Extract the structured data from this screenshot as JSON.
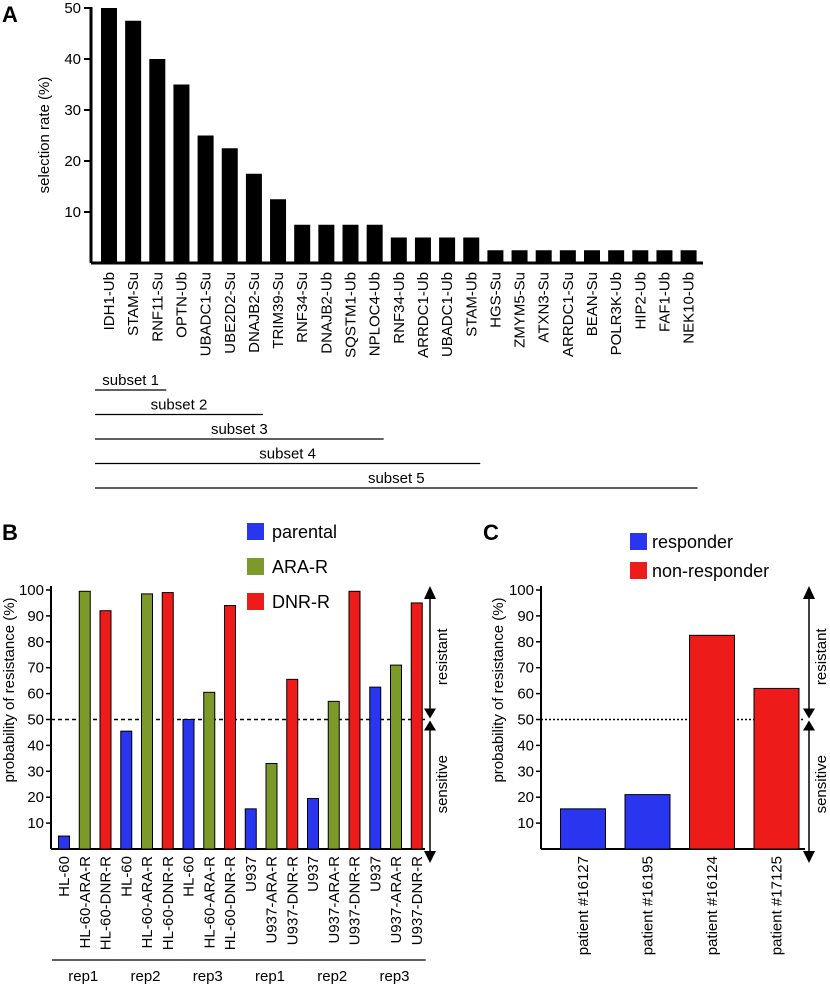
{
  "figure": {
    "panel_labels": [
      "A",
      "B",
      "C"
    ]
  },
  "chart_data": [
    {
      "id": "A",
      "type": "bar",
      "title": "",
      "ylabel": "selection rate (%)",
      "xlabel": "",
      "ylim": [
        0,
        50
      ],
      "yticks": [
        10,
        20,
        30,
        40,
        50
      ],
      "categories": [
        "IDH1-Ub",
        "STAM-Su",
        "RNF11-Su",
        "OPTN-Ub",
        "UBADC1-Su",
        "UBE2D2-Su",
        "DNAJB2-Su",
        "TRIM39-Su",
        "RNF34-Su",
        "DNAJB2-Ub",
        "SQSTM1-Ub",
        "NPLOC4-Ub",
        "RNF34-Ub",
        "ARRDC1-Ub",
        "UBADC1-Ub",
        "STAM-Ub",
        "HGS-Su",
        "ZMYM5-Su",
        "ATXN3-Su",
        "ARRDC1-Su",
        "BEAN-Su",
        "POLR3K-Ub",
        "HIP2-Ub",
        "FAF1-Ub",
        "NEK10-Ub"
      ],
      "values": [
        50,
        47.5,
        40,
        35,
        25,
        22.5,
        17.5,
        12.5,
        7.5,
        7.5,
        7.5,
        7.5,
        5,
        5,
        5,
        5,
        2.5,
        2.5,
        2.5,
        2.5,
        2.5,
        2.5,
        2.5,
        2.5,
        2.5
      ],
      "colors": {
        "bar": "#000000"
      },
      "subsets": [
        {
          "label": "subset 1",
          "start": 0,
          "end": 2
        },
        {
          "label": "subset 2",
          "start": 0,
          "end": 6
        },
        {
          "label": "subset 3",
          "start": 0,
          "end": 11
        },
        {
          "label": "subset 4",
          "start": 0,
          "end": 15
        },
        {
          "label": "subset 5",
          "start": 0,
          "end": 24
        }
      ]
    },
    {
      "id": "B",
      "type": "bar",
      "ylabel": "probability of resistance (%)",
      "ylim": [
        0,
        100
      ],
      "yticks": [
        10,
        20,
        30,
        40,
        50,
        60,
        70,
        80,
        90,
        100
      ],
      "threshold": 50,
      "legend": [
        {
          "label": "parental",
          "color": "#2a35f0"
        },
        {
          "label": "ARA-R",
          "color": "#7c9a2a"
        },
        {
          "label": "DNR-R",
          "color": "#ee1b1b"
        }
      ],
      "annotations": {
        "upper": "resistant",
        "lower": "sensitive"
      },
      "groups": [
        "rep1",
        "rep2",
        "rep3",
        "rep1",
        "rep2",
        "rep3"
      ],
      "categories": [
        "HL-60",
        "HL-60-ARA-R",
        "HL-60-DNR-R",
        "HL-60",
        "HL-60-ARA-R",
        "HL-60-DNR-R",
        "HL-60",
        "HL-60-ARA-R",
        "HL-60-DNR-R",
        "U937",
        "U937-ARA-R",
        "U937-DNR-R",
        "U937",
        "U937-ARA-R",
        "U937-DNR-R",
        "U937",
        "U937-ARA-R",
        "U937-DNR-R"
      ],
      "series_index": [
        0,
        1,
        2,
        0,
        1,
        2,
        0,
        1,
        2,
        0,
        1,
        2,
        0,
        1,
        2,
        0,
        1,
        2
      ],
      "values": [
        5,
        99.5,
        92,
        45.5,
        98.5,
        99,
        50,
        60.5,
        94,
        15.5,
        33,
        65.5,
        19.5,
        57,
        99.5,
        62.5,
        71,
        95
      ]
    },
    {
      "id": "C",
      "type": "bar",
      "ylabel": "probability of resistance (%)",
      "ylim": [
        0,
        100
      ],
      "yticks": [
        10,
        20,
        30,
        40,
        50,
        60,
        70,
        80,
        90,
        100
      ],
      "threshold": 50,
      "legend": [
        {
          "label": "responder",
          "color": "#2a35f0"
        },
        {
          "label": "non-responder",
          "color": "#ee1b1b"
        }
      ],
      "annotations": {
        "upper": "resistant",
        "lower": "sensitive"
      },
      "categories": [
        "patient #16127",
        "patient #16195",
        "patient #16124",
        "patient #17125"
      ],
      "series_index": [
        0,
        0,
        1,
        1
      ],
      "values": [
        15.5,
        21,
        82.5,
        62
      ]
    }
  ]
}
